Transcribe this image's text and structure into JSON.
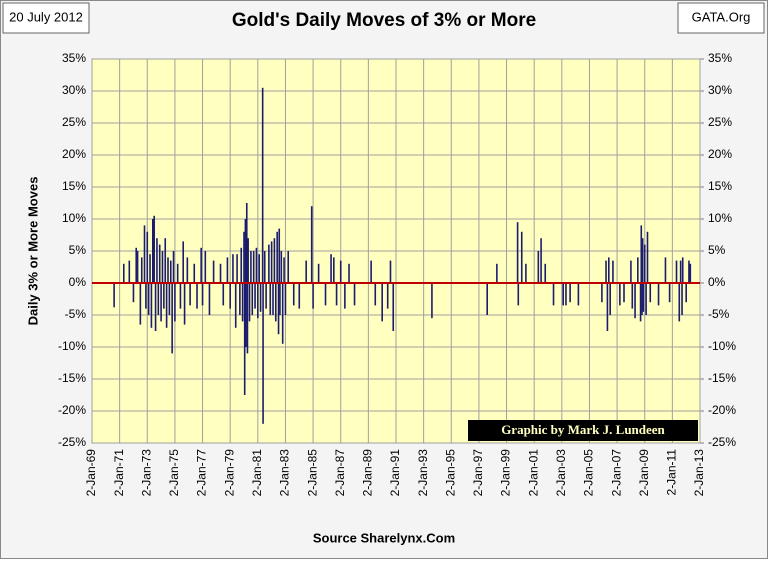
{
  "chart_data": {
    "type": "needle",
    "title": "Gold's Daily Moves of 3% or More",
    "date_label": "20 July 2012",
    "site_label": "GATA.Org",
    "ylabel": "Daily 3% or More Moves",
    "annotation": "Graphic by Mark J. Lundeen",
    "source": "Source Sharelynx.Com",
    "color": "#1c1c6e",
    "zero_line_color": "#c00000",
    "plot_background": "#ffffc0",
    "grid": true,
    "xlim": [
      1969,
      2013
    ],
    "xticks": [
      {
        "value": 1969,
        "label": "2-Jan-69"
      },
      {
        "value": 1971,
        "label": "2-Jan-71"
      },
      {
        "value": 1973,
        "label": "2-Jan-73"
      },
      {
        "value": 1975,
        "label": "2-Jan-75"
      },
      {
        "value": 1977,
        "label": "2-Jan-77"
      },
      {
        "value": 1979,
        "label": "2-Jan-79"
      },
      {
        "value": 1981,
        "label": "2-Jan-81"
      },
      {
        "value": 1983,
        "label": "2-Jan-83"
      },
      {
        "value": 1985,
        "label": "2-Jan-85"
      },
      {
        "value": 1987,
        "label": "2-Jan-87"
      },
      {
        "value": 1989,
        "label": "2-Jan-89"
      },
      {
        "value": 1991,
        "label": "2-Jan-91"
      },
      {
        "value": 1993,
        "label": "2-Jan-93"
      },
      {
        "value": 1995,
        "label": "2-Jan-95"
      },
      {
        "value": 1997,
        "label": "2-Jan-97"
      },
      {
        "value": 1999,
        "label": "2-Jan-99"
      },
      {
        "value": 2001,
        "label": "2-Jan-01"
      },
      {
        "value": 2003,
        "label": "2-Jan-03"
      },
      {
        "value": 2005,
        "label": "2-Jan-05"
      },
      {
        "value": 2007,
        "label": "2-Jan-07"
      },
      {
        "value": 2009,
        "label": "2-Jan-09"
      },
      {
        "value": 2011,
        "label": "2-Jan-11"
      },
      {
        "value": 2013,
        "label": "2-Jan-13"
      }
    ],
    "ylim": [
      -25,
      35
    ],
    "yticks": [
      {
        "value": -25,
        "label": "-25%"
      },
      {
        "value": -20,
        "label": "-20%"
      },
      {
        "value": -15,
        "label": "-15%"
      },
      {
        "value": -10,
        "label": "-10%"
      },
      {
        "value": -5,
        "label": "-5%"
      },
      {
        "value": 0,
        "label": "0%"
      },
      {
        "value": 5,
        "label": "5%"
      },
      {
        "value": 10,
        "label": "10%"
      },
      {
        "value": 15,
        "label": "15%"
      },
      {
        "value": 20,
        "label": "20%"
      },
      {
        "value": 25,
        "label": "25%"
      },
      {
        "value": 30,
        "label": "30%"
      },
      {
        "value": 35,
        "label": "35%"
      }
    ],
    "y2lim": [
      -25,
      35
    ],
    "y2ticks": [
      {
        "value": -25,
        "label": "-25%"
      },
      {
        "value": -20,
        "label": "-20%"
      },
      {
        "value": -15,
        "label": "-15%"
      },
      {
        "value": -10,
        "label": "-10%"
      },
      {
        "value": -5,
        "label": "-5%"
      },
      {
        "value": 0,
        "label": "0%"
      },
      {
        "value": 5,
        "label": "5%"
      },
      {
        "value": 10,
        "label": "10%"
      },
      {
        "value": 15,
        "label": "15%"
      },
      {
        "value": 20,
        "label": "20%"
      },
      {
        "value": 25,
        "label": "25%"
      },
      {
        "value": 30,
        "label": "30%"
      },
      {
        "value": 35,
        "label": "35%"
      }
    ],
    "x": [
      1970.6,
      1971.3,
      1971.7,
      1972.0,
      1972.2,
      1972.3,
      1972.5,
      1972.6,
      1972.8,
      1972.9,
      1973.0,
      1973.1,
      1973.2,
      1973.3,
      1973.4,
      1973.5,
      1973.6,
      1973.7,
      1973.8,
      1973.9,
      1974.0,
      1974.1,
      1974.2,
      1974.3,
      1974.4,
      1974.5,
      1974.6,
      1974.7,
      1974.8,
      1974.9,
      1975.0,
      1975.2,
      1975.4,
      1975.6,
      1975.7,
      1975.9,
      1976.1,
      1976.4,
      1976.6,
      1976.9,
      1977.0,
      1977.2,
      1977.5,
      1977.8,
      1978.3,
      1978.5,
      1978.8,
      1979.0,
      1979.2,
      1979.4,
      1979.5,
      1979.7,
      1979.8,
      1979.9,
      1980.0,
      1980.05,
      1980.1,
      1980.15,
      1980.2,
      1980.25,
      1980.3,
      1980.4,
      1980.5,
      1980.6,
      1980.7,
      1980.8,
      1980.9,
      1981.0,
      1981.1,
      1981.2,
      1981.35,
      1981.38,
      1981.5,
      1981.6,
      1981.8,
      1981.9,
      1982.0,
      1982.1,
      1982.2,
      1982.3,
      1982.4,
      1982.5,
      1982.55,
      1982.6,
      1982.7,
      1982.8,
      1982.9,
      1983.0,
      1983.2,
      1983.6,
      1984.0,
      1984.5,
      1984.9,
      1985.0,
      1985.4,
      1985.9,
      1986.3,
      1986.5,
      1986.7,
      1987.0,
      1987.3,
      1987.6,
      1988.0,
      1989.2,
      1989.5,
      1990.0,
      1990.4,
      1990.6,
      1990.8,
      1993.6,
      1997.6,
      1998.3,
      1999.8,
      1999.85,
      2000.1,
      2000.4,
      2001.3,
      2001.5,
      2001.8,
      2002.4,
      2003.1,
      2003.3,
      2003.6,
      2004.2,
      2005.9,
      2006.2,
      2006.3,
      2006.4,
      2006.5,
      2006.7,
      2007.2,
      2007.5,
      2008.0,
      2008.1,
      2008.3,
      2008.5,
      2008.7,
      2008.75,
      2008.8,
      2008.85,
      2008.9,
      2009.0,
      2009.1,
      2009.2,
      2009.4,
      2010.0,
      2010.5,
      2010.8,
      2011.3,
      2011.5,
      2011.6,
      2011.7,
      2011.75,
      2012.0,
      2012.2,
      2012.3
    ],
    "values": [
      -3.8,
      3,
      3.5,
      -3,
      5.5,
      5,
      -6.5,
      4,
      9,
      -4,
      8,
      -5,
      4.5,
      -7,
      10,
      10.5,
      -7.5,
      7,
      -5,
      6,
      -6,
      5,
      -4,
      7,
      -7,
      4,
      -5,
      3.5,
      -11,
      5,
      -6,
      3,
      -4,
      6.5,
      -6.5,
      4,
      -3.5,
      3,
      -4,
      5.5,
      -3.5,
      5,
      -5,
      3.5,
      3,
      -3.5,
      4,
      -4,
      4.5,
      -7,
      4.5,
      -5,
      5.5,
      -6,
      8,
      -17.5,
      10,
      -10,
      12.5,
      -11,
      7,
      -6,
      5,
      -5,
      5,
      -4,
      5.5,
      -5.5,
      4.5,
      -4.5,
      30.5,
      -22,
      5,
      -4,
      6,
      -5,
      6.5,
      -5,
      7,
      -6,
      8,
      -8,
      8.5,
      -5,
      5,
      -9.5,
      4,
      -5,
      5,
      -3.5,
      -4,
      3.5,
      12,
      -4,
      3,
      -3.5,
      4.5,
      4,
      -3.5,
      3.5,
      -4,
      3,
      -3.5,
      3.5,
      -3.5,
      -6,
      -4,
      3.5,
      -7.5,
      -5.5,
      -5,
      3,
      9.5,
      -3.5,
      8,
      3,
      5,
      7,
      3,
      -3.5,
      -3.5,
      -3.5,
      -3,
      -3.5,
      -3,
      3.5,
      -7.5,
      4,
      -5,
      3.5,
      -3.5,
      -3,
      3.5,
      -4,
      -5.5,
      4,
      -6,
      9,
      -5,
      7,
      -4.5,
      6,
      -5,
      8,
      -3,
      -3.5,
      4,
      -3,
      3.5,
      -6,
      3.5,
      -5,
      4,
      -3,
      3.5,
      3
    ]
  }
}
